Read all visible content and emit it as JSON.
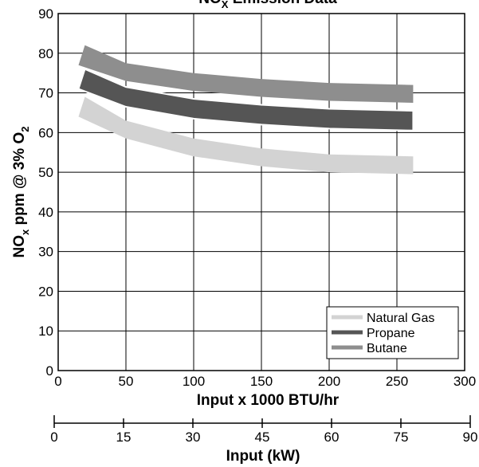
{
  "chart_data": {
    "type": "area",
    "title_main": "NO",
    "title_sub": "X",
    "title_rest": " Emission Data",
    "xlabel": "Input x 1000 BTU/hr",
    "ylabel_main": "NO",
    "ylabel_sub1": "x",
    "ylabel_mid": " ppm @ 3% O",
    "ylabel_sub2": "2",
    "secondary_xlabel": "Input (kW)",
    "xlim": [
      0,
      300
    ],
    "ylim": [
      0,
      90
    ],
    "secondary_xlim": [
      0,
      90
    ],
    "xticks": [
      "0",
      "50",
      "100",
      "150",
      "200",
      "250",
      "300"
    ],
    "yticks": [
      "0",
      "10",
      "20",
      "30",
      "40",
      "50",
      "60",
      "70",
      "80",
      "90"
    ],
    "secondary_xticks": [
      "0",
      "15",
      "30",
      "45",
      "60",
      "75",
      "90"
    ],
    "grid": true,
    "legend_position": "bottom-right",
    "x": [
      15,
      50,
      100,
      150,
      200,
      262
    ],
    "series": [
      {
        "name": "Natural Gas",
        "color": "#d3d3d3",
        "lower": [
          64,
          58.5,
          54,
          51.5,
          50,
          49.5
        ],
        "upper": [
          69,
          63,
          58.5,
          56,
          54.5,
          54
        ]
      },
      {
        "name": "Propane",
        "color": "#555555",
        "lower": [
          71,
          66.5,
          63.5,
          62,
          61,
          60.5
        ],
        "upper": [
          76,
          71.5,
          68.5,
          67,
          66,
          65.5
        ]
      },
      {
        "name": "Butane",
        "color": "#8e8e8e",
        "lower": [
          77,
          73,
          70.5,
          69,
          68,
          67.5
        ],
        "upper": [
          82,
          77.5,
          75,
          73.5,
          72.5,
          72
        ]
      }
    ]
  }
}
